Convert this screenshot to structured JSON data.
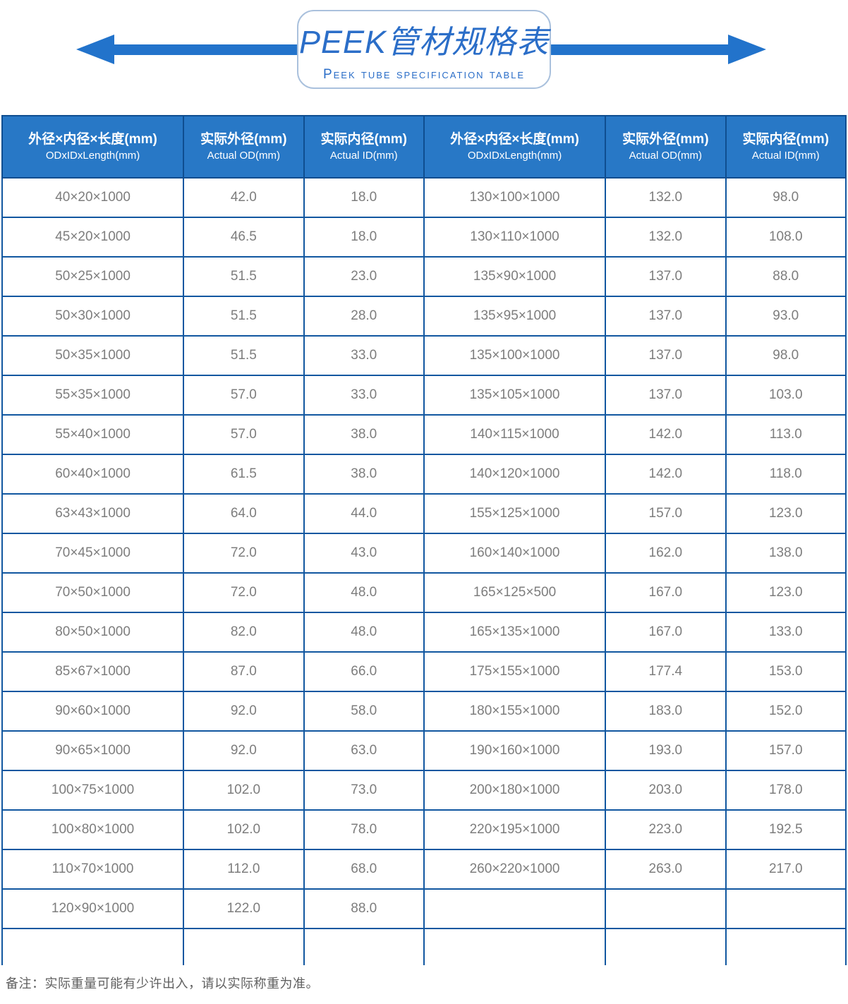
{
  "title": {
    "main": "PEEK管材规格表",
    "sub": "Peek tube specification table"
  },
  "table": {
    "headers": [
      {
        "zh": "外径×内径×长度(mm)",
        "en": "ODxIDxLength(mm)"
      },
      {
        "zh": "实际外径(mm)",
        "en": "Actual OD(mm)"
      },
      {
        "zh": "实际内径(mm)",
        "en": "Actual ID(mm)"
      },
      {
        "zh": "外径×内径×长度(mm)",
        "en": "ODxIDxLength(mm)"
      },
      {
        "zh": "实际外径(mm)",
        "en": "Actual OD(mm)"
      },
      {
        "zh": "实际内径(mm)",
        "en": "Actual ID(mm)"
      }
    ],
    "rows": [
      [
        "40×20×1000",
        "42.0",
        "18.0",
        "130×100×1000",
        "132.0",
        "98.0"
      ],
      [
        "45×20×1000",
        "46.5",
        "18.0",
        "130×110×1000",
        "132.0",
        "108.0"
      ],
      [
        "50×25×1000",
        "51.5",
        "23.0",
        "135×90×1000",
        "137.0",
        "88.0"
      ],
      [
        "50×30×1000",
        "51.5",
        "28.0",
        "135×95×1000",
        "137.0",
        "93.0"
      ],
      [
        "50×35×1000",
        "51.5",
        "33.0",
        "135×100×1000",
        "137.0",
        "98.0"
      ],
      [
        "55×35×1000",
        "57.0",
        "33.0",
        "135×105×1000",
        "137.0",
        "103.0"
      ],
      [
        "55×40×1000",
        "57.0",
        "38.0",
        "140×115×1000",
        "142.0",
        "113.0"
      ],
      [
        "60×40×1000",
        "61.5",
        "38.0",
        "140×120×1000",
        "142.0",
        "118.0"
      ],
      [
        "63×43×1000",
        "64.0",
        "44.0",
        "155×125×1000",
        "157.0",
        "123.0"
      ],
      [
        "70×45×1000",
        "72.0",
        "43.0",
        "160×140×1000",
        "162.0",
        "138.0"
      ],
      [
        "70×50×1000",
        "72.0",
        "48.0",
        "165×125×500",
        "167.0",
        "123.0"
      ],
      [
        "80×50×1000",
        "82.0",
        "48.0",
        "165×135×1000",
        "167.0",
        "133.0"
      ],
      [
        "85×67×1000",
        "87.0",
        "66.0",
        "175×155×1000",
        "177.4",
        "153.0"
      ],
      [
        "90×60×1000",
        "92.0",
        "58.0",
        "180×155×1000",
        "183.0",
        "152.0"
      ],
      [
        "90×65×1000",
        "92.0",
        "63.0",
        "190×160×1000",
        "193.0",
        "157.0"
      ],
      [
        "100×75×1000",
        "102.0",
        "73.0",
        "200×180×1000",
        "203.0",
        "178.0"
      ],
      [
        "100×80×1000",
        "102.0",
        "78.0",
        "220×195×1000",
        "223.0",
        "192.5"
      ],
      [
        "110×70×1000",
        "112.0",
        "68.0",
        "260×220×1000",
        "263.0",
        "217.0"
      ],
      [
        "120×90×1000",
        "122.0",
        "88.0",
        "",
        "",
        ""
      ]
    ]
  },
  "note": "备注：实际重量可能有少许出入，请以实际称重为准。",
  "colors": {
    "accent_blue": "#2273cb",
    "header_bg": "#2878c6",
    "table_border": "#1157a0",
    "cell_text": "#7d7d7d",
    "title_text": "#2b6ec8"
  }
}
